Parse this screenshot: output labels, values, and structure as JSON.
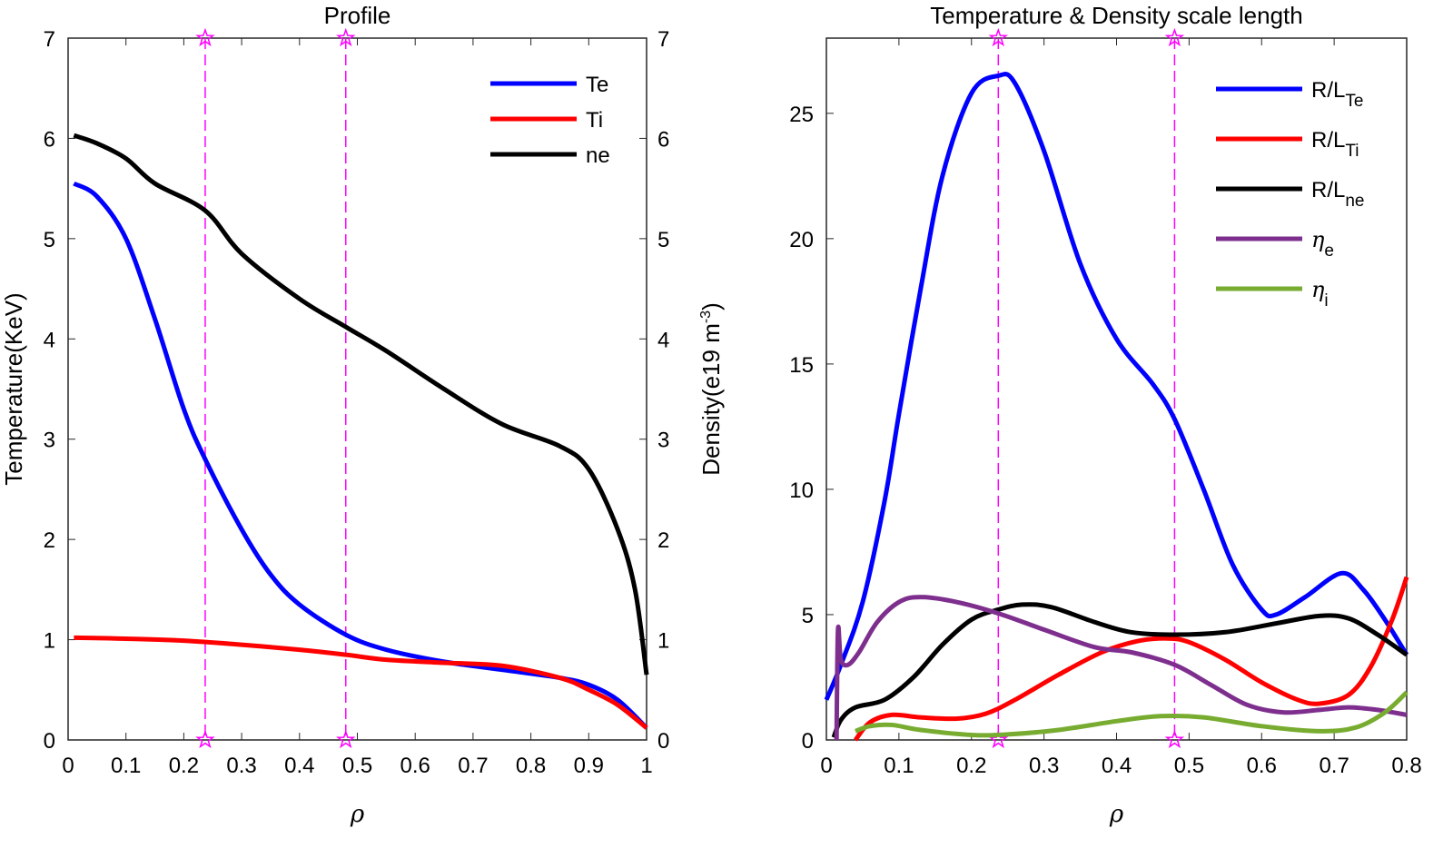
{
  "chart_data": [
    {
      "type": "line",
      "title": "Profile",
      "xlabel": "ρ",
      "ylabel": "Temperature(KeV)",
      "ylabel_right": "Density(e19 m^-3)",
      "xlim": [
        0,
        1
      ],
      "ylim": [
        0,
        7
      ],
      "ylim_right": [
        0,
        7
      ],
      "xticks": [
        "0",
        "0.1",
        "0.2",
        "0.3",
        "0.4",
        "0.5",
        "0.6",
        "0.7",
        "0.8",
        "0.9",
        "1"
      ],
      "yticks": [
        "0",
        "1",
        "2",
        "3",
        "4",
        "5",
        "6",
        "7"
      ],
      "legend": "top-right",
      "markers_x": [
        0.237,
        0.48
      ],
      "marker_color": "#ff00ff",
      "series": [
        {
          "name": "Te",
          "color": "#0000ff",
          "axis": "left",
          "points": [
            [
              0.01,
              5.55
            ],
            [
              0.05,
              5.42
            ],
            [
              0.1,
              5.0
            ],
            [
              0.15,
              4.2
            ],
            [
              0.2,
              3.3
            ],
            [
              0.237,
              2.8
            ],
            [
              0.3,
              2.1
            ],
            [
              0.35,
              1.65
            ],
            [
              0.4,
              1.35
            ],
            [
              0.48,
              1.05
            ],
            [
              0.55,
              0.9
            ],
            [
              0.65,
              0.78
            ],
            [
              0.75,
              0.7
            ],
            [
              0.85,
              0.62
            ],
            [
              0.9,
              0.55
            ],
            [
              0.95,
              0.4
            ],
            [
              1.0,
              0.12
            ]
          ]
        },
        {
          "name": "Ti",
          "color": "#ff0000",
          "axis": "left",
          "points": [
            [
              0.01,
              1.02
            ],
            [
              0.1,
              1.01
            ],
            [
              0.2,
              0.99
            ],
            [
              0.3,
              0.95
            ],
            [
              0.4,
              0.9
            ],
            [
              0.48,
              0.85
            ],
            [
              0.55,
              0.8
            ],
            [
              0.65,
              0.77
            ],
            [
              0.75,
              0.74
            ],
            [
              0.85,
              0.62
            ],
            [
              0.9,
              0.5
            ],
            [
              0.95,
              0.35
            ],
            [
              1.0,
              0.12
            ]
          ]
        },
        {
          "name": "ne",
          "color": "#000000",
          "axis": "right",
          "points": [
            [
              0.01,
              6.03
            ],
            [
              0.05,
              5.95
            ],
            [
              0.1,
              5.8
            ],
            [
              0.15,
              5.55
            ],
            [
              0.237,
              5.28
            ],
            [
              0.3,
              4.85
            ],
            [
              0.4,
              4.4
            ],
            [
              0.48,
              4.12
            ],
            [
              0.55,
              3.88
            ],
            [
              0.65,
              3.5
            ],
            [
              0.75,
              3.15
            ],
            [
              0.85,
              2.93
            ],
            [
              0.9,
              2.7
            ],
            [
              0.95,
              2.1
            ],
            [
              0.98,
              1.5
            ],
            [
              1.0,
              0.65
            ]
          ]
        }
      ]
    },
    {
      "type": "line",
      "title": "Temperature & Density scale length",
      "xlabel": "ρ",
      "xlim": [
        0,
        0.8
      ],
      "ylim": [
        0,
        28
      ],
      "xticks": [
        "0",
        "0.1",
        "0.2",
        "0.3",
        "0.4",
        "0.5",
        "0.6",
        "0.7",
        "0.8"
      ],
      "yticks": [
        "0",
        "5",
        "10",
        "15",
        "20",
        "25"
      ],
      "legend": "top-right",
      "markers_x": [
        0.237,
        0.48
      ],
      "marker_color": "#ff00ff",
      "series": [
        {
          "name": "R/L",
          "sub": "Te",
          "color": "#0000ff",
          "points": [
            [
              0.0,
              1.6
            ],
            [
              0.02,
              3.0
            ],
            [
              0.05,
              5.5
            ],
            [
              0.08,
              9.5
            ],
            [
              0.1,
              13
            ],
            [
              0.13,
              18
            ],
            [
              0.16,
              22.5
            ],
            [
              0.2,
              25.8
            ],
            [
              0.237,
              26.5
            ],
            [
              0.26,
              26.2
            ],
            [
              0.3,
              23.5
            ],
            [
              0.35,
              19
            ],
            [
              0.4,
              16
            ],
            [
              0.45,
              14.2
            ],
            [
              0.48,
              12.8
            ],
            [
              0.52,
              10
            ],
            [
              0.56,
              7
            ],
            [
              0.6,
              5.2
            ],
            [
              0.62,
              5.0
            ],
            [
              0.66,
              5.7
            ],
            [
              0.71,
              6.65
            ],
            [
              0.74,
              6.0
            ],
            [
              0.77,
              4.8
            ],
            [
              0.8,
              3.4
            ]
          ]
        },
        {
          "name": "R/L",
          "sub": "Ti",
          "color": "#ff0000",
          "points": [
            [
              0.04,
              0
            ],
            [
              0.06,
              0.7
            ],
            [
              0.09,
              1.0
            ],
            [
              0.13,
              0.9
            ],
            [
              0.18,
              0.85
            ],
            [
              0.22,
              1.05
            ],
            [
              0.26,
              1.6
            ],
            [
              0.32,
              2.6
            ],
            [
              0.38,
              3.5
            ],
            [
              0.43,
              3.95
            ],
            [
              0.47,
              4.05
            ],
            [
              0.5,
              3.9
            ],
            [
              0.55,
              3.2
            ],
            [
              0.6,
              2.3
            ],
            [
              0.65,
              1.6
            ],
            [
              0.68,
              1.45
            ],
            [
              0.72,
              1.8
            ],
            [
              0.75,
              2.9
            ],
            [
              0.78,
              4.8
            ],
            [
              0.8,
              6.5
            ]
          ]
        },
        {
          "name": "R/L",
          "sub": "ne",
          "color": "#000000",
          "points": [
            [
              0.01,
              0.1
            ],
            [
              0.02,
              0.8
            ],
            [
              0.04,
              1.3
            ],
            [
              0.08,
              1.6
            ],
            [
              0.12,
              2.5
            ],
            [
              0.16,
              3.8
            ],
            [
              0.2,
              4.8
            ],
            [
              0.237,
              5.2
            ],
            [
              0.27,
              5.4
            ],
            [
              0.31,
              5.3
            ],
            [
              0.37,
              4.7
            ],
            [
              0.42,
              4.3
            ],
            [
              0.48,
              4.2
            ],
            [
              0.55,
              4.3
            ],
            [
              0.62,
              4.65
            ],
            [
              0.68,
              4.95
            ],
            [
              0.72,
              4.85
            ],
            [
              0.76,
              4.2
            ],
            [
              0.8,
              3.4
            ]
          ]
        },
        {
          "name": "η",
          "sub": "e",
          "color": "#7e2f8e",
          "points": [
            [
              0.014,
              0
            ],
            [
              0.016,
              4.4
            ],
            [
              0.02,
              3.2
            ],
            [
              0.03,
              3.0
            ],
            [
              0.045,
              3.5
            ],
            [
              0.07,
              4.7
            ],
            [
              0.1,
              5.5
            ],
            [
              0.13,
              5.7
            ],
            [
              0.18,
              5.5
            ],
            [
              0.237,
              5.05
            ],
            [
              0.3,
              4.4
            ],
            [
              0.37,
              3.7
            ],
            [
              0.42,
              3.5
            ],
            [
              0.48,
              3.0
            ],
            [
              0.53,
              2.2
            ],
            [
              0.58,
              1.4
            ],
            [
              0.63,
              1.1
            ],
            [
              0.68,
              1.2
            ],
            [
              0.72,
              1.3
            ],
            [
              0.76,
              1.2
            ],
            [
              0.8,
              1.0
            ]
          ]
        },
        {
          "name": "η",
          "sub": "i",
          "color": "#77ac30",
          "points": [
            [
              0.04,
              0.35
            ],
            [
              0.06,
              0.55
            ],
            [
              0.09,
              0.6
            ],
            [
              0.13,
              0.4
            ],
            [
              0.2,
              0.2
            ],
            [
              0.25,
              0.22
            ],
            [
              0.32,
              0.4
            ],
            [
              0.4,
              0.75
            ],
            [
              0.46,
              0.95
            ],
            [
              0.52,
              0.9
            ],
            [
              0.6,
              0.55
            ],
            [
              0.68,
              0.35
            ],
            [
              0.73,
              0.5
            ],
            [
              0.77,
              1.1
            ],
            [
              0.8,
              1.9
            ]
          ]
        }
      ]
    }
  ]
}
